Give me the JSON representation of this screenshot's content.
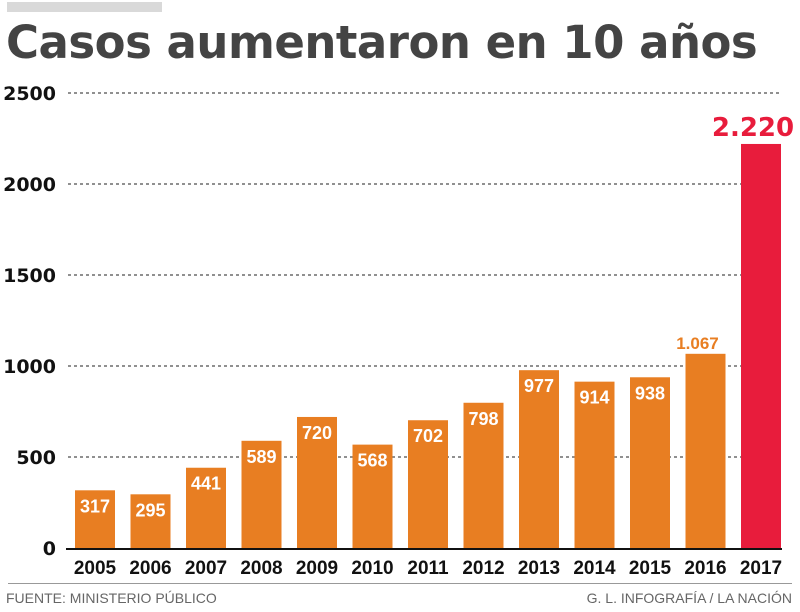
{
  "chart_data": {
    "type": "bar",
    "title": "Casos aumentaron en 10 años",
    "categories": [
      "2005",
      "2006",
      "2007",
      "2008",
      "2009",
      "2010",
      "2011",
      "2012",
      "2013",
      "2014",
      "2015",
      "2016",
      "2017"
    ],
    "values": [
      317,
      295,
      441,
      589,
      720,
      568,
      702,
      798,
      977,
      914,
      938,
      1067,
      2220
    ],
    "value_labels": [
      "317",
      "295",
      "441",
      "589",
      "720",
      "568",
      "702",
      "798",
      "977",
      "914",
      "938",
      "1.067",
      "2.220"
    ],
    "ylim": [
      0,
      2500
    ],
    "yticks": [
      0,
      500,
      1000,
      1500,
      2000,
      2500
    ],
    "grid": true,
    "xlabel": "",
    "ylabel": "",
    "colors": {
      "bar": "#e87e22",
      "highlight": "#e81c3c",
      "text": "#111111"
    }
  },
  "footer": {
    "source": "FUENTE: MINISTERIO PÚBLICO",
    "credit": "G. L. INFOGRAFÍA / LA NACIÓN"
  }
}
